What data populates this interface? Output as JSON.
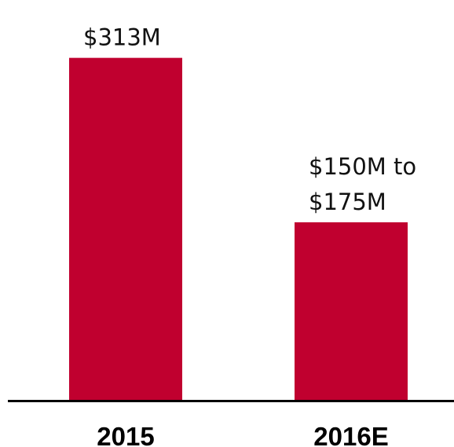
{
  "chart_data": {
    "type": "bar",
    "categories": [
      "2015",
      "2016E"
    ],
    "values": [
      313,
      162.5
    ],
    "value_ranges": [
      null,
      [
        150,
        175
      ]
    ],
    "value_labels": [
      [
        "$313M"
      ],
      [
        "$150M to",
        "$175M"
      ]
    ],
    "ylim": [
      0,
      330
    ],
    "grid": false,
    "bar_color": "#C0002F",
    "axis_color": "#000000"
  }
}
